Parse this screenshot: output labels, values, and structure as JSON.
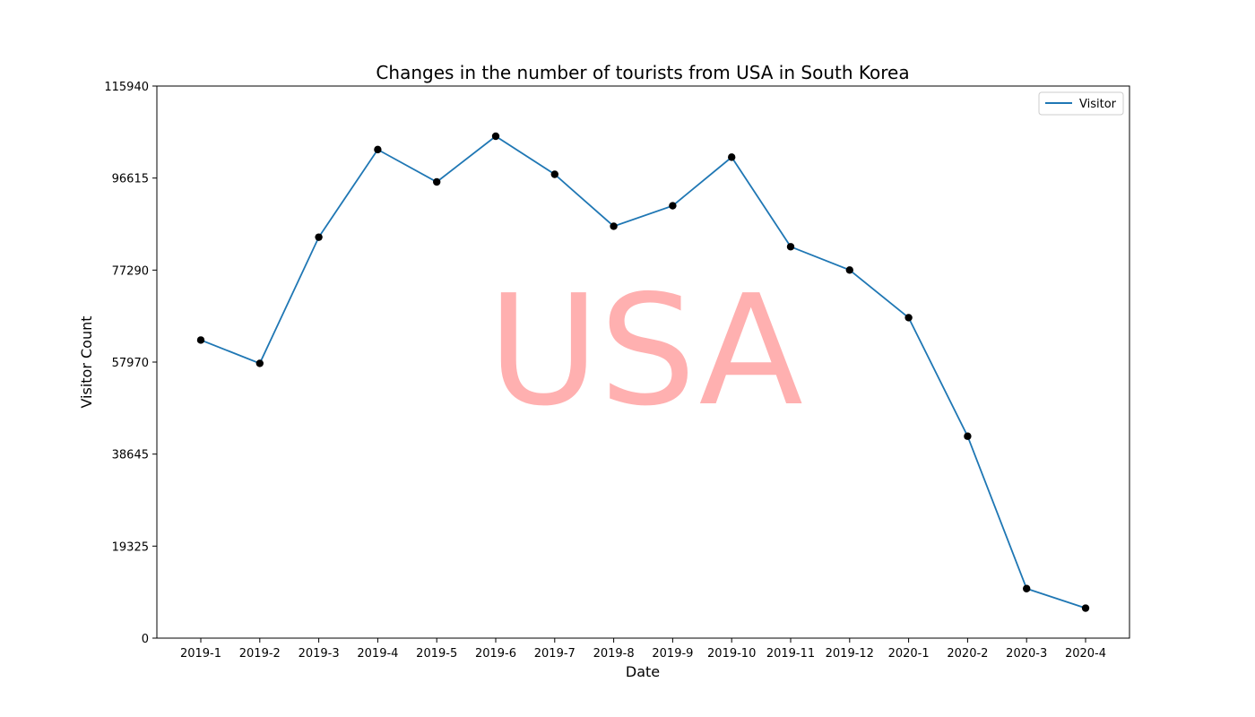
{
  "chart_data": {
    "type": "line",
    "title": "Changes in the number of tourists from USA in South Korea",
    "xlabel": "Date",
    "ylabel": "Visitor Count",
    "categories": [
      "2019-1",
      "2019-2",
      "2019-3",
      "2019-4",
      "2019-5",
      "2019-6",
      "2019-7",
      "2019-8",
      "2019-9",
      "2019-10",
      "2019-11",
      "2019-12",
      "2020-1",
      "2020-2",
      "2020-3",
      "2020-4"
    ],
    "series": [
      {
        "name": "Visitor",
        "values": [
          62600,
          57700,
          84200,
          102600,
          95800,
          105400,
          97400,
          86500,
          90800,
          101000,
          82200,
          77300,
          67300,
          42400,
          10400,
          6300
        ]
      }
    ],
    "yticks": [
      0,
      19325,
      38645,
      57970,
      77290,
      96615,
      115940
    ],
    "ylim": [
      0,
      115940
    ],
    "legend_position": "top-right",
    "grid": false,
    "watermark": "USA",
    "colors": {
      "line": "#1f77b4",
      "marker": "#000000",
      "watermark": "#ffb0b0"
    }
  }
}
